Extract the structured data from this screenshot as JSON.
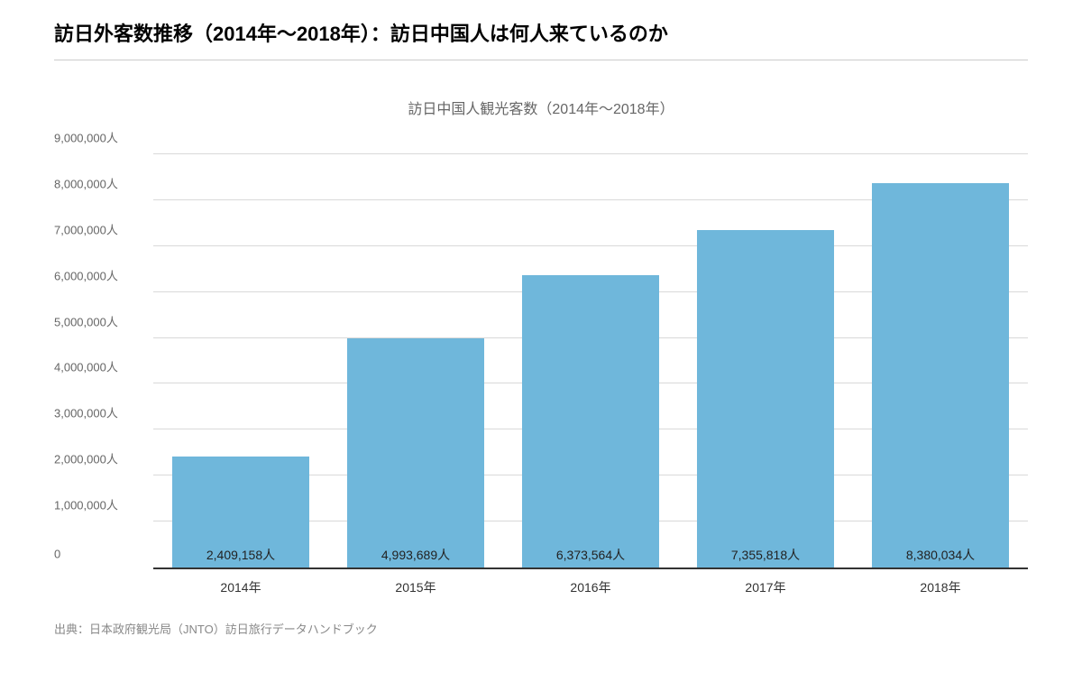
{
  "header": {
    "title": "訪日外客数推移（2014年～2018年）：訪日中国人は何人来ているのか"
  },
  "chart": {
    "type": "bar",
    "title": "訪日中国人観光客数（2014年～2018年）",
    "categories": [
      "2014年",
      "2015年",
      "2016年",
      "2017年",
      "2018年"
    ],
    "values": [
      2409158,
      4993689,
      6373564,
      7355818,
      8380034
    ],
    "value_labels": [
      "2,409,158人",
      "4,993,689人",
      "6,373,564人",
      "7,355,818人",
      "8,380,034人"
    ],
    "bar_color": "#6fb7db",
    "ylim": [
      0,
      9000000
    ],
    "ytick_step": 1000000,
    "ytick_labels": [
      "0",
      "1,000,000人",
      "2,000,000人",
      "3,000,000人",
      "4,000,000人",
      "5,000,000人",
      "6,000,000人",
      "7,000,000人",
      "8,000,000人",
      "9,000,000人"
    ],
    "grid_color": "#d9d9d9",
    "axis_color": "#333333",
    "background_color": "#ffffff",
    "title_fontsize": 16,
    "title_color": "#666666",
    "label_fontsize": 13,
    "label_color": "#666666",
    "value_label_fontsize": 14,
    "value_label_color": "#222222",
    "xlabel_fontsize": 14,
    "xlabel_color": "#333333",
    "bar_width_ratio": 0.78
  },
  "footer": {
    "source": "出典：日本政府観光局（JNTO）訪日旅行データハンドブック"
  }
}
